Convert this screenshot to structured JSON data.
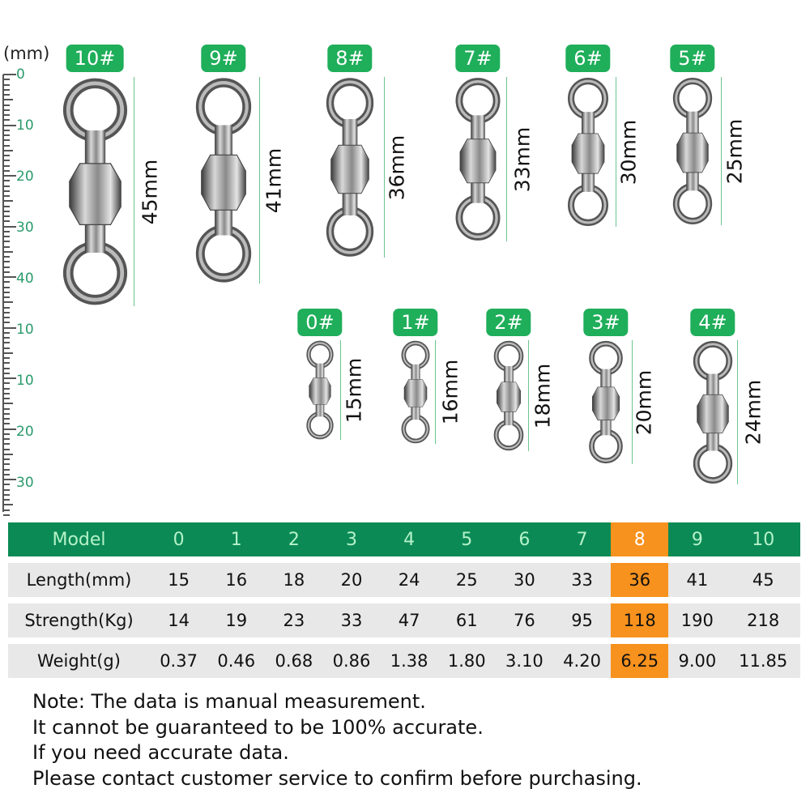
{
  "ruler": {
    "unit": "(mm)",
    "labels": [
      "0",
      "10",
      "20",
      "30",
      "40",
      "10",
      "10",
      "20",
      "30"
    ]
  },
  "swivels": [
    {
      "label": "10#",
      "length": "45mm"
    },
    {
      "label": "9#",
      "length": "41mm"
    },
    {
      "label": "8#",
      "length": "36mm"
    },
    {
      "label": "7#",
      "length": "33mm"
    },
    {
      "label": "6#",
      "length": "30mm"
    },
    {
      "label": "5#",
      "length": "25mm"
    },
    {
      "label": "0#",
      "length": "15mm"
    },
    {
      "label": "1#",
      "length": "16mm"
    },
    {
      "label": "2#",
      "length": "18mm"
    },
    {
      "label": "3#",
      "length": "20mm"
    },
    {
      "label": "4#",
      "length": "24mm"
    }
  ],
  "table": {
    "highlight_color": "#f7921e",
    "header_color": "#0b8a56",
    "highlighted_model": "8",
    "header": [
      "Model",
      "0",
      "1",
      "2",
      "3",
      "4",
      "5",
      "6",
      "7",
      "8",
      "9",
      "10"
    ],
    "rows": [
      [
        "Length(mm)",
        "15",
        "16",
        "18",
        "20",
        "24",
        "25",
        "30",
        "33",
        "36",
        "41",
        "45"
      ],
      [
        "Strength(Kg)",
        "14",
        "19",
        "23",
        "33",
        "47",
        "61",
        "76",
        "95",
        "118",
        "190",
        "218"
      ],
      [
        "Weight(g)",
        "0.37",
        "0.46",
        "0.68",
        "0.86",
        "1.38",
        "1.80",
        "3.10",
        "4.20",
        "6.25",
        "9.00",
        "11.85"
      ]
    ]
  },
  "notes": [
    "Note: The data is manual measurement.",
    "It cannot be guaranteed to be 100% accurate.",
    "If you need accurate data.",
    "Please contact customer service to confirm before purchasing."
  ]
}
